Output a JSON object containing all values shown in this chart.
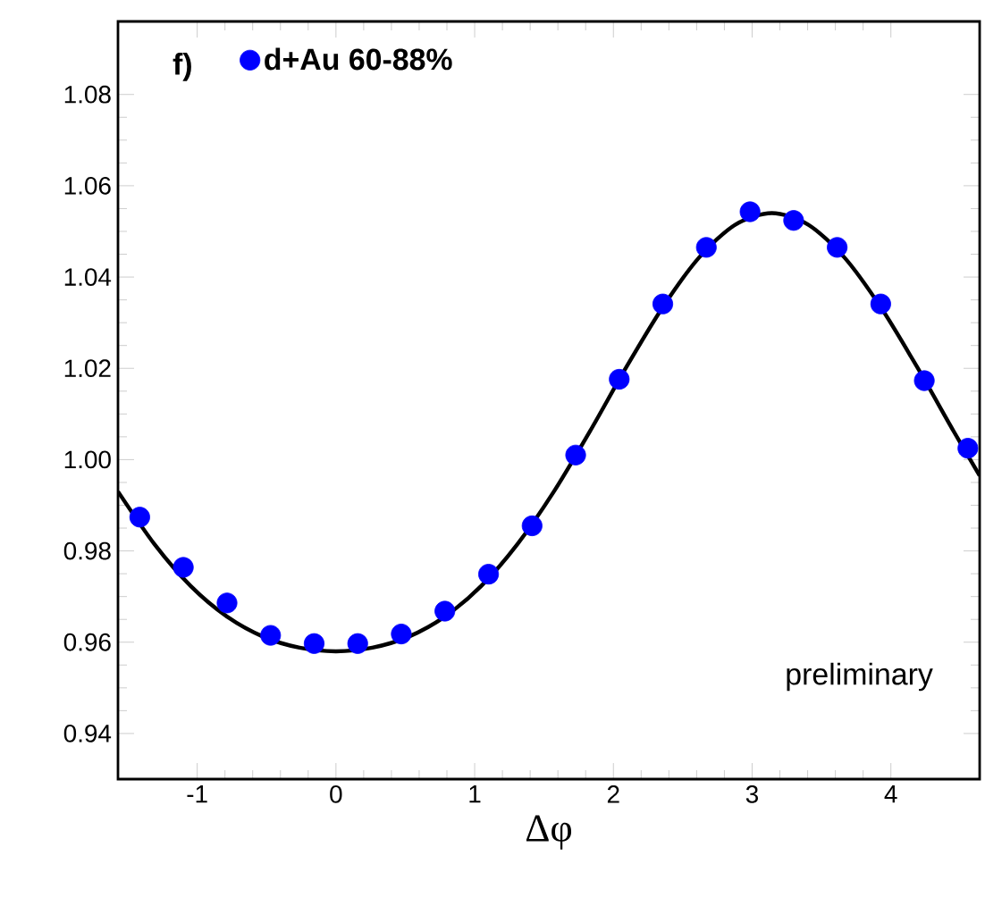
{
  "chart_data": {
    "type": "scatter",
    "xlabel": "Δφ",
    "xlim": [
      -1.571,
      4.64
    ],
    "ylim": [
      0.93,
      1.096
    ],
    "xticks": [
      -1,
      0,
      1,
      2,
      3,
      4
    ],
    "yticks": [
      {
        "value": 0.94,
        "label": "0.94"
      },
      {
        "value": 0.96,
        "label": "0.96"
      },
      {
        "value": 0.98,
        "label": "0.98"
      },
      {
        "value": 1.0,
        "label": "1.00"
      },
      {
        "value": 1.02,
        "label": "1.02"
      },
      {
        "value": 1.04,
        "label": "1.04"
      },
      {
        "value": 1.06,
        "label": "1.06"
      },
      {
        "value": 1.08,
        "label": "1.08"
      }
    ],
    "grid": false,
    "legend": "top left",
    "annotations": [
      "f)",
      "preliminary"
    ],
    "series": [
      {
        "name": "d+Au 60-88%",
        "marker": "circle",
        "color": "#0000ff",
        "x": [
          -1.414,
          -1.1,
          -0.785,
          -0.471,
          -0.157,
          0.157,
          0.471,
          0.785,
          1.1,
          1.414,
          1.728,
          2.042,
          2.356,
          2.67,
          2.985,
          3.299,
          3.613,
          3.927,
          4.241,
          4.555
        ],
        "values": [
          0.9874,
          0.9764,
          0.9686,
          0.9615,
          0.9597,
          0.9597,
          0.9618,
          0.9668,
          0.9749,
          0.9855,
          1.001,
          1.0176,
          1.0341,
          1.0465,
          1.0543,
          1.0524,
          1.0465,
          1.0341,
          1.0173,
          1.0025
        ]
      },
      {
        "type": "line",
        "color": "#000000",
        "x": [
          -1.571,
          -1.309,
          -1.047,
          -0.785,
          -0.524,
          -0.262,
          0,
          0.262,
          0.524,
          0.785,
          1.047,
          1.309,
          1.571,
          1.833,
          2.094,
          2.356,
          2.618,
          2.88,
          3.142,
          3.403,
          3.665,
          3.927,
          4.189,
          4.451,
          4.64
        ],
        "values": [
          0.993,
          0.9815,
          0.9723,
          0.9656,
          0.9612,
          0.9588,
          0.958,
          0.9588,
          0.9612,
          0.9656,
          0.9723,
          0.9815,
          0.993,
          1.0063,
          1.0203,
          1.0334,
          1.0443,
          1.0515,
          1.054,
          1.0515,
          1.0443,
          1.0334,
          1.0203,
          1.0063,
          0.9965
        ]
      }
    ]
  }
}
